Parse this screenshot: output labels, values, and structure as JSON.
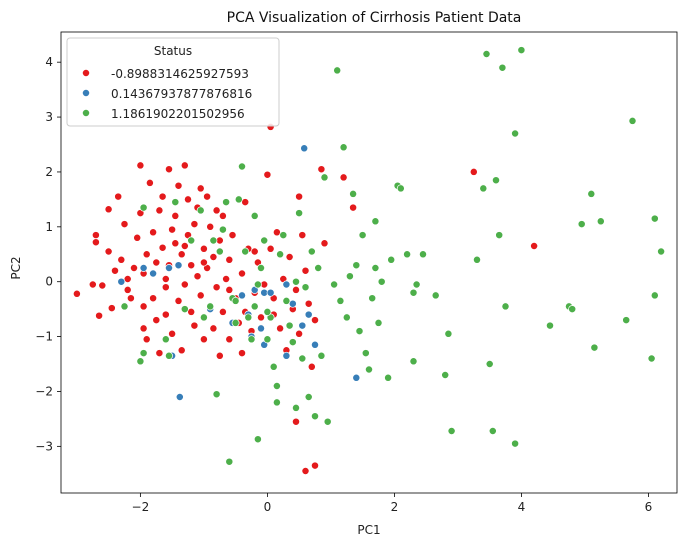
{
  "chart_data": {
    "type": "scatter",
    "title": "PCA Visualization of Cirrhosis Patient Data",
    "xlabel": "PC1",
    "ylabel": "PC2",
    "xlim": [
      -3.25,
      6.45
    ],
    "ylim": [
      -3.85,
      4.55
    ],
    "xticks": [
      -2,
      0,
      2,
      4,
      6
    ],
    "yticks": [
      -3,
      -2,
      -1,
      0,
      1,
      2,
      3,
      4
    ],
    "xtick_labels": [
      "−2",
      "0",
      "2",
      "4",
      "6"
    ],
    "ytick_labels": [
      "−3",
      "−2",
      "−1",
      "0",
      "1",
      "2",
      "3",
      "4"
    ],
    "grid": false,
    "legend": {
      "title": "Status",
      "placement": "top-left"
    },
    "series": [
      {
        "name": "-0.8988314625927593",
        "color": "#e41a1c",
        "points": [
          [
            -3.0,
            -0.22
          ],
          [
            -2.75,
            -0.05
          ],
          [
            -2.6,
            -0.07
          ],
          [
            -2.7,
            0.85
          ],
          [
            -2.7,
            0.72
          ],
          [
            -2.65,
            -0.62
          ],
          [
            -2.5,
            0.55
          ],
          [
            -2.45,
            -0.48
          ],
          [
            -2.5,
            1.32
          ],
          [
            -2.35,
            1.55
          ],
          [
            -2.3,
            0.4
          ],
          [
            -2.25,
            1.05
          ],
          [
            -2.2,
            0.05
          ],
          [
            -2.15,
            -0.3
          ],
          [
            -2.1,
            0.25
          ],
          [
            -2.0,
            2.12
          ],
          [
            -2.0,
            1.25
          ],
          [
            -2.05,
            0.8
          ],
          [
            -1.95,
            0.15
          ],
          [
            -1.95,
            -0.45
          ],
          [
            -1.95,
            -0.85
          ],
          [
            -1.9,
            0.5
          ],
          [
            -1.9,
            -1.05
          ],
          [
            -1.85,
            1.8
          ],
          [
            -1.8,
            0.9
          ],
          [
            -1.8,
            -0.3
          ],
          [
            -1.75,
            0.35
          ],
          [
            -1.7,
            1.3
          ],
          [
            -1.7,
            -1.3
          ],
          [
            -1.65,
            1.55
          ],
          [
            -1.65,
            0.62
          ],
          [
            -1.6,
            -0.1
          ],
          [
            -1.6,
            -0.6
          ],
          [
            -1.55,
            2.05
          ],
          [
            -1.55,
            0.3
          ],
          [
            -1.5,
            0.95
          ],
          [
            -1.5,
            -0.95
          ],
          [
            -1.45,
            1.2
          ],
          [
            -1.45,
            0.7
          ],
          [
            -1.4,
            -0.35
          ],
          [
            -1.4,
            1.75
          ],
          [
            -1.35,
            0.5
          ],
          [
            -1.35,
            -1.25
          ],
          [
            -1.3,
            2.12
          ],
          [
            -1.3,
            -0.05
          ],
          [
            -1.25,
            1.5
          ],
          [
            -1.25,
            0.85
          ],
          [
            -1.2,
            -0.55
          ],
          [
            -1.2,
            0.3
          ],
          [
            -1.15,
            1.05
          ],
          [
            -1.15,
            -0.8
          ],
          [
            -1.1,
            1.35
          ],
          [
            -1.1,
            0.1
          ],
          [
            -1.05,
            1.7
          ],
          [
            -1.05,
            -0.25
          ],
          [
            -1.0,
            0.6
          ],
          [
            -1.0,
            -1.05
          ],
          [
            -0.95,
            1.55
          ],
          [
            -0.95,
            0.25
          ],
          [
            -0.9,
            -0.5
          ],
          [
            -0.9,
            1.0
          ],
          [
            -0.85,
            -0.85
          ],
          [
            -0.85,
            0.45
          ],
          [
            -0.8,
            1.3
          ],
          [
            -0.8,
            -0.1
          ],
          [
            -0.75,
            0.75
          ],
          [
            -0.75,
            -1.35
          ],
          [
            -0.7,
            -0.55
          ],
          [
            -0.7,
            1.2
          ],
          [
            -0.65,
            0.05
          ],
          [
            -0.6,
            0.4
          ],
          [
            -0.6,
            -1.05
          ],
          [
            -0.55,
            0.85
          ],
          [
            -0.5,
            -0.3
          ],
          [
            -0.45,
            -0.75
          ],
          [
            -0.4,
            0.15
          ],
          [
            -0.35,
            1.45
          ],
          [
            -0.35,
            -0.55
          ],
          [
            -0.3,
            0.6
          ],
          [
            -0.25,
            -0.9
          ],
          [
            -0.2,
            -0.2
          ],
          [
            -0.15,
            0.35
          ],
          [
            -0.1,
            -0.65
          ],
          [
            -0.05,
            -0.05
          ],
          [
            0.0,
            1.95
          ],
          [
            0.05,
            2.82
          ],
          [
            0.05,
            0.6
          ],
          [
            0.1,
            -0.3
          ],
          [
            0.15,
            0.9
          ],
          [
            0.2,
            -0.85
          ],
          [
            0.25,
            0.05
          ],
          [
            0.3,
            -1.25
          ],
          [
            0.35,
            0.45
          ],
          [
            0.4,
            -0.5
          ],
          [
            0.45,
            -0.15
          ],
          [
            0.5,
            -0.95
          ],
          [
            0.5,
            1.55
          ],
          [
            0.55,
            0.85
          ],
          [
            0.6,
            0.2
          ],
          [
            0.65,
            -0.4
          ],
          [
            0.7,
            -1.55
          ],
          [
            0.75,
            -0.7
          ],
          [
            0.45,
            -2.55
          ],
          [
            0.6,
            -3.45
          ],
          [
            0.75,
            -3.35
          ],
          [
            0.85,
            2.05
          ],
          [
            0.9,
            0.7
          ],
          [
            1.2,
            1.9
          ],
          [
            1.35,
            1.35
          ],
          [
            3.25,
            2.0
          ],
          [
            4.2,
            0.65
          ],
          [
            -2.2,
            -0.15
          ],
          [
            -1.6,
            0.05
          ],
          [
            -1.3,
            0.65
          ],
          [
            -0.6,
            -0.15
          ],
          [
            -0.2,
            0.55
          ],
          [
            0.1,
            -0.6
          ],
          [
            -1.75,
            -0.7
          ],
          [
            -1.0,
            0.35
          ],
          [
            -0.4,
            -1.3
          ],
          [
            -2.4,
            0.2
          ]
        ]
      },
      {
        "name": "0.14367937877876816",
        "color": "#377eb8",
        "points": [
          [
            -2.3,
            0.0
          ],
          [
            -1.95,
            0.25
          ],
          [
            -1.8,
            0.15
          ],
          [
            -1.55,
            0.25
          ],
          [
            -1.5,
            -1.35
          ],
          [
            -1.4,
            0.3
          ],
          [
            -1.38,
            -2.1
          ],
          [
            -0.9,
            -0.5
          ],
          [
            -0.55,
            -0.75
          ],
          [
            -0.4,
            -0.25
          ],
          [
            -0.3,
            -0.6
          ],
          [
            -0.25,
            -1.0
          ],
          [
            -0.2,
            -0.15
          ],
          [
            -0.1,
            -0.85
          ],
          [
            -0.05,
            -0.2
          ],
          [
            0.05,
            -0.2
          ],
          [
            0.3,
            -0.05
          ],
          [
            0.4,
            -0.4
          ],
          [
            0.55,
            -0.8
          ],
          [
            0.58,
            2.43
          ],
          [
            0.65,
            -0.6
          ],
          [
            0.75,
            -1.15
          ],
          [
            1.4,
            -1.75
          ],
          [
            0.3,
            -1.35
          ],
          [
            -0.05,
            -1.15
          ]
        ]
      },
      {
        "name": "1.1861902201502956",
        "color": "#4daf4a",
        "points": [
          [
            -2.25,
            -0.45
          ],
          [
            -2.0,
            -1.45
          ],
          [
            -1.95,
            1.35
          ],
          [
            -1.95,
            -1.3
          ],
          [
            -1.6,
            -1.05
          ],
          [
            -1.55,
            -1.35
          ],
          [
            -1.45,
            1.45
          ],
          [
            -1.3,
            -0.5
          ],
          [
            -1.2,
            0.75
          ],
          [
            -1.05,
            1.3
          ],
          [
            -1.0,
            -0.65
          ],
          [
            -0.9,
            -0.45
          ],
          [
            -0.85,
            0.75
          ],
          [
            -0.8,
            -2.05
          ],
          [
            -0.75,
            0.55
          ],
          [
            -0.7,
            0.95
          ],
          [
            -0.65,
            1.45
          ],
          [
            -0.6,
            -3.28
          ],
          [
            -0.55,
            -0.3
          ],
          [
            -0.5,
            -0.35
          ],
          [
            -0.5,
            -0.75
          ],
          [
            -0.45,
            1.5
          ],
          [
            -0.4,
            2.1
          ],
          [
            -0.35,
            0.55
          ],
          [
            -0.3,
            -0.65
          ],
          [
            -0.25,
            -1.05
          ],
          [
            -0.2,
            -0.45
          ],
          [
            -0.2,
            1.2
          ],
          [
            -0.15,
            -2.87
          ],
          [
            -0.15,
            -0.05
          ],
          [
            -0.1,
            0.25
          ],
          [
            -0.05,
            0.75
          ],
          [
            0.0,
            -1.05
          ],
          [
            0.05,
            -0.65
          ],
          [
            0.1,
            -1.55
          ],
          [
            0.15,
            -1.9
          ],
          [
            0.15,
            -2.2
          ],
          [
            0.2,
            0.5
          ],
          [
            0.25,
            0.85
          ],
          [
            0.3,
            -0.35
          ],
          [
            0.35,
            -0.8
          ],
          [
            0.4,
            -1.1
          ],
          [
            0.45,
            -2.3
          ],
          [
            0.45,
            0.0
          ],
          [
            0.5,
            1.25
          ],
          [
            0.55,
            -1.4
          ],
          [
            0.6,
            -0.1
          ],
          [
            0.65,
            -2.1
          ],
          [
            0.7,
            0.55
          ],
          [
            0.75,
            -2.45
          ],
          [
            0.8,
            0.25
          ],
          [
            0.85,
            -1.35
          ],
          [
            0.9,
            1.9
          ],
          [
            0.95,
            -2.55
          ],
          [
            1.1,
            3.85
          ],
          [
            1.15,
            -0.35
          ],
          [
            1.2,
            2.45
          ],
          [
            1.25,
            -0.65
          ],
          [
            1.3,
            0.1
          ],
          [
            1.35,
            1.6
          ],
          [
            1.4,
            0.3
          ],
          [
            1.45,
            -0.9
          ],
          [
            1.5,
            0.85
          ],
          [
            1.55,
            -1.3
          ],
          [
            1.6,
            -1.6
          ],
          [
            1.65,
            -0.3
          ],
          [
            1.7,
            0.25
          ],
          [
            1.7,
            1.1
          ],
          [
            1.75,
            -0.75
          ],
          [
            1.9,
            -1.75
          ],
          [
            1.95,
            0.4
          ],
          [
            2.05,
            1.75
          ],
          [
            2.2,
            0.5
          ],
          [
            2.3,
            -0.2
          ],
          [
            2.3,
            -1.45
          ],
          [
            2.35,
            -0.05
          ],
          [
            2.45,
            0.5
          ],
          [
            2.65,
            -0.25
          ],
          [
            2.8,
            -1.7
          ],
          [
            2.85,
            -0.95
          ],
          [
            2.9,
            -2.72
          ],
          [
            3.3,
            0.4
          ],
          [
            3.4,
            1.7
          ],
          [
            3.45,
            4.15
          ],
          [
            3.5,
            -1.5
          ],
          [
            3.55,
            -2.72
          ],
          [
            3.6,
            1.85
          ],
          [
            3.65,
            0.85
          ],
          [
            3.7,
            3.9
          ],
          [
            3.75,
            -0.45
          ],
          [
            3.9,
            2.7
          ],
          [
            3.9,
            -2.95
          ],
          [
            4.0,
            4.22
          ],
          [
            4.45,
            -0.8
          ],
          [
            4.75,
            -0.45
          ],
          [
            4.8,
            -0.5
          ],
          [
            4.95,
            1.05
          ],
          [
            5.1,
            1.6
          ],
          [
            5.15,
            -1.2
          ],
          [
            5.25,
            1.1
          ],
          [
            5.65,
            -0.7
          ],
          [
            5.75,
            2.93
          ],
          [
            6.05,
            -1.4
          ],
          [
            6.1,
            1.15
          ],
          [
            6.1,
            -0.25
          ],
          [
            6.2,
            0.55
          ],
          [
            1.05,
            -0.05
          ],
          [
            1.8,
            0.0
          ],
          [
            2.1,
            1.7
          ],
          [
            0.0,
            -0.55
          ]
        ]
      }
    ]
  }
}
